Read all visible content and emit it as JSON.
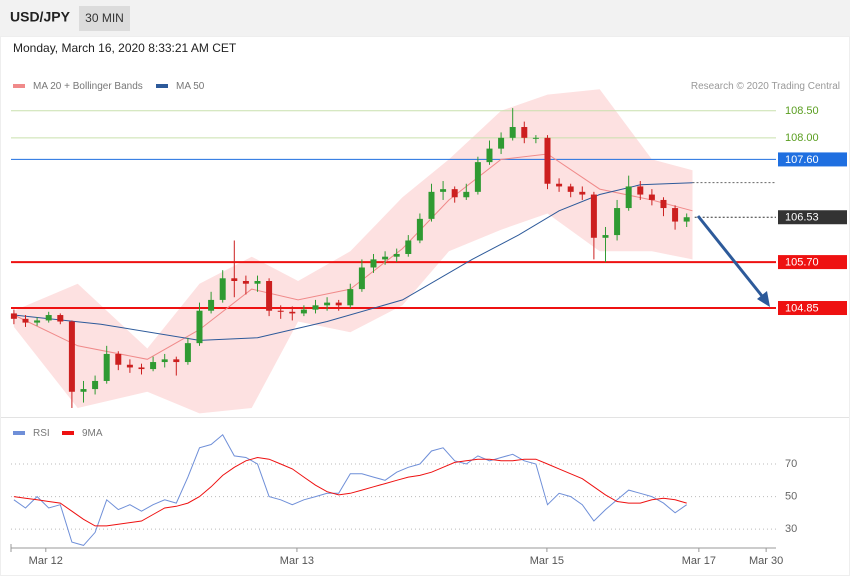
{
  "header": {
    "symbol": "USD/JPY",
    "interval": "30 MIN",
    "timestamp": "Monday, March 16, 2020 8:33:21 AM CET"
  },
  "chart_data": [
    {
      "type": "candlestick",
      "credit": "Research © 2020 Trading Central",
      "up_color": "#2f9a32",
      "down_color": "#cc1f1f",
      "x": [
        0,
        2,
        4,
        6,
        8,
        10,
        12,
        14,
        16,
        18,
        20,
        22,
        24,
        26,
        28,
        30,
        32,
        34,
        36,
        38,
        40,
        42,
        44,
        46,
        48,
        50,
        52,
        54,
        56,
        58,
        60,
        62,
        64,
        66,
        68,
        70,
        72,
        74,
        76,
        78,
        80,
        82,
        84,
        86,
        88,
        90,
        92,
        94,
        96,
        98,
        100,
        102,
        104,
        106,
        108,
        110,
        112,
        114,
        116
      ],
      "ohlc": [
        [
          104.75,
          104.82,
          104.55,
          104.65
        ],
        [
          104.65,
          104.72,
          104.5,
          104.58
        ],
        [
          104.58,
          104.68,
          104.52,
          104.62
        ],
        [
          104.62,
          104.78,
          104.58,
          104.72
        ],
        [
          104.72,
          104.75,
          104.55,
          104.6
        ],
        [
          104.6,
          104.62,
          103.0,
          103.3
        ],
        [
          103.3,
          103.5,
          103.1,
          103.35
        ],
        [
          103.35,
          103.6,
          103.25,
          103.5
        ],
        [
          103.5,
          104.15,
          103.45,
          104.0
        ],
        [
          104.0,
          104.05,
          103.7,
          103.8
        ],
        [
          103.8,
          103.9,
          103.65,
          103.75
        ],
        [
          103.75,
          103.82,
          103.62,
          103.72
        ],
        [
          103.72,
          103.95,
          103.68,
          103.85
        ],
        [
          103.85,
          104.0,
          103.75,
          103.9
        ],
        [
          103.9,
          103.95,
          103.6,
          103.85
        ],
        [
          103.85,
          104.3,
          103.8,
          104.2
        ],
        [
          104.2,
          104.95,
          104.15,
          104.8
        ],
        [
          104.8,
          105.15,
          104.75,
          105.0
        ],
        [
          105.0,
          105.55,
          104.95,
          105.4
        ],
        [
          105.4,
          106.1,
          105.05,
          105.35
        ],
        [
          105.35,
          105.45,
          105.1,
          105.3
        ],
        [
          105.3,
          105.45,
          105.15,
          105.35
        ],
        [
          105.35,
          105.4,
          104.7,
          104.8
        ],
        [
          104.8,
          104.9,
          104.65,
          104.78
        ],
        [
          104.78,
          104.88,
          104.62,
          104.75
        ],
        [
          104.75,
          104.9,
          104.7,
          104.82
        ],
        [
          104.82,
          105.0,
          104.75,
          104.9
        ],
        [
          104.9,
          105.05,
          104.8,
          104.95
        ],
        [
          104.95,
          105.0,
          104.8,
          104.9
        ],
        [
          104.9,
          105.3,
          104.85,
          105.2
        ],
        [
          105.2,
          105.75,
          105.15,
          105.6
        ],
        [
          105.6,
          105.85,
          105.5,
          105.75
        ],
        [
          105.75,
          105.9,
          105.65,
          105.8
        ],
        [
          105.8,
          105.95,
          105.7,
          105.85
        ],
        [
          105.85,
          106.2,
          105.8,
          106.1
        ],
        [
          106.1,
          106.6,
          106.05,
          106.5
        ],
        [
          106.5,
          107.15,
          106.45,
          107.0
        ],
        [
          107.0,
          107.2,
          106.85,
          107.05
        ],
        [
          107.05,
          107.1,
          106.8,
          106.9
        ],
        [
          106.9,
          107.15,
          106.85,
          107.0
        ],
        [
          107.0,
          107.65,
          106.95,
          107.55
        ],
        [
          107.55,
          107.95,
          107.5,
          107.8
        ],
        [
          107.8,
          108.1,
          107.7,
          108.0
        ],
        [
          108.0,
          108.55,
          107.95,
          108.2
        ],
        [
          108.2,
          108.3,
          107.9,
          108.0
        ],
        [
          108.0,
          108.05,
          107.9,
          108.0
        ],
        [
          108.0,
          108.05,
          107.05,
          107.15
        ],
        [
          107.15,
          107.25,
          107.0,
          107.1
        ],
        [
          107.1,
          107.15,
          106.9,
          107.0
        ],
        [
          107.0,
          107.1,
          106.85,
          106.95
        ],
        [
          106.95,
          107.0,
          105.75,
          106.15
        ],
        [
          106.15,
          106.35,
          105.7,
          106.2
        ],
        [
          106.2,
          106.85,
          106.1,
          106.7
        ],
        [
          106.7,
          107.3,
          106.65,
          107.1
        ],
        [
          107.1,
          107.2,
          106.85,
          106.95
        ],
        [
          106.95,
          107.05,
          106.75,
          106.85
        ],
        [
          106.85,
          106.9,
          106.55,
          106.7
        ],
        [
          106.7,
          106.75,
          106.3,
          106.45
        ],
        [
          106.45,
          106.6,
          106.35,
          106.53
        ]
      ],
      "series": [
        {
          "name": "MA 20 + Bollinger Bands",
          "color": "#f08a8a",
          "band_color": "#fde1e1",
          "x": [
            0,
            11,
            23,
            32,
            41,
            49,
            58,
            67,
            75,
            84,
            92,
            101,
            110,
            117
          ],
          "values": [
            104.72,
            104.15,
            103.9,
            104.45,
            105.2,
            105.0,
            105.2,
            105.95,
            106.85,
            107.6,
            107.7,
            107.05,
            106.85,
            106.65
          ],
          "upper": [
            104.8,
            105.3,
            104.1,
            105.3,
            105.8,
            105.35,
            105.9,
            106.9,
            107.6,
            108.5,
            108.8,
            108.9,
            107.6,
            107.4
          ],
          "lower": [
            104.5,
            103.0,
            103.3,
            102.9,
            103.0,
            104.6,
            104.4,
            104.9,
            105.9,
            106.3,
            106.6,
            105.9,
            105.9,
            105.75
          ]
        },
        {
          "name": "MA 50",
          "color": "#2d5a9a",
          "x": [
            0,
            15,
            32,
            42,
            54,
            67,
            79,
            87,
            94,
            101,
            108,
            117
          ],
          "values": [
            104.72,
            104.55,
            104.25,
            104.3,
            104.6,
            105.0,
            105.75,
            106.2,
            106.65,
            106.95,
            107.13,
            107.17
          ]
        }
      ],
      "levels": [
        {
          "value": 108.5,
          "label": "108.50",
          "color": "#c9e0ad",
          "text_color": "#5a9e20",
          "style": "text",
          "line": "solid",
          "width": 1
        },
        {
          "value": 108.0,
          "label": "108.00",
          "color": "#c9e0ad",
          "text_color": "#5a9e20",
          "style": "text",
          "line": "solid",
          "width": 1
        },
        {
          "value": 107.6,
          "label": "107.60",
          "color": "#1f6fe0",
          "text_color": "#ffffff",
          "style": "box",
          "line": "solid",
          "width": 1
        },
        {
          "value": 106.53,
          "label": "106.53",
          "color": "#333333",
          "text_color": "#ffffff",
          "style": "box",
          "line": "dotted",
          "width": 1
        },
        {
          "value": 105.7,
          "label": "105.70",
          "color": "#ee1111",
          "text_color": "#ffffff",
          "style": "box",
          "line": "solid",
          "width": 2
        },
        {
          "value": 104.85,
          "label": "104.85",
          "color": "#ee1111",
          "text_color": "#ffffff",
          "style": "box",
          "line": "solid",
          "width": 2
        }
      ],
      "xlim": [
        -0.5,
        131.4
      ],
      "ylim": [
        102.87,
        109.07
      ]
    },
    {
      "type": "line",
      "x": [
        0,
        2,
        4,
        6,
        8,
        10,
        12,
        14,
        16,
        18,
        20,
        22,
        24,
        26,
        28,
        30,
        32,
        34,
        36,
        38,
        40,
        42,
        44,
        46,
        48,
        50,
        52,
        54,
        56,
        58,
        60,
        62,
        64,
        66,
        68,
        70,
        72,
        74,
        76,
        78,
        80,
        82,
        84,
        86,
        88,
        90,
        92,
        94,
        96,
        98,
        100,
        102,
        104,
        106,
        108,
        110,
        112,
        114,
        116
      ],
      "series": [
        {
          "name": "RSI",
          "color": "#6f8fd8",
          "values": [
            48,
            43,
            50,
            43,
            45,
            22,
            20,
            28,
            48,
            42,
            45,
            41,
            45,
            48,
            46,
            62,
            80,
            82,
            88,
            75,
            74,
            70,
            50,
            48,
            45,
            48,
            50,
            52,
            52,
            64,
            64,
            62,
            60,
            65,
            68,
            70,
            78,
            80,
            72,
            70,
            75,
            72,
            74,
            76,
            72,
            70,
            45,
            52,
            50,
            45,
            35,
            42,
            48,
            54,
            52,
            50,
            46,
            40,
            45
          ]
        },
        {
          "name": "9MA",
          "color": "#ee1111",
          "values": [
            50,
            49,
            48,
            47,
            46,
            41,
            36,
            32,
            32,
            33,
            34,
            35,
            39,
            43,
            44,
            46,
            50,
            56,
            63,
            68,
            72,
            74,
            73,
            70,
            67,
            62,
            57,
            53,
            51,
            52,
            54,
            56,
            58,
            60,
            62,
            63,
            65,
            68,
            71,
            72,
            73,
            73,
            72,
            72,
            73,
            73,
            70,
            67,
            64,
            61,
            56,
            51,
            47,
            46,
            46,
            48,
            49,
            48,
            46
          ]
        }
      ],
      "xlim": [
        -0.5,
        131.4
      ],
      "ylim": [
        19,
        94
      ],
      "yticks": [
        30,
        50,
        70
      ],
      "grid": true,
      "xticks": [
        {
          "value": 5.5,
          "label": "Mar 12"
        },
        {
          "value": 48.8,
          "label": "Mar 13"
        },
        {
          "value": 91.9,
          "label": "Mar 15"
        },
        {
          "value": 118.1,
          "label": "Mar 17"
        },
        {
          "value": 129.7,
          "label": "Mar 30"
        }
      ]
    }
  ]
}
